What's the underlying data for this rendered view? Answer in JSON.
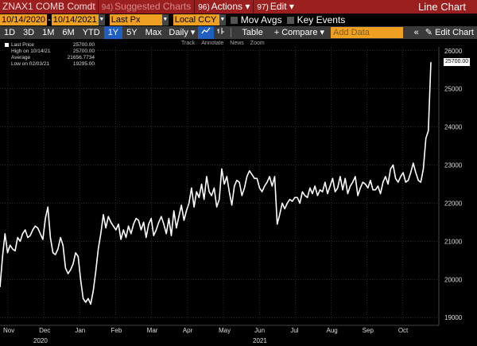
{
  "topbar": {
    "ticker": "ZNAX1 COMB Comdt",
    "suggested": {
      "num": "94)",
      "label": "Suggested Charts"
    },
    "actions": {
      "num": "96)",
      "label": "Actions ▾"
    },
    "edit": {
      "num": "97)",
      "label": "Edit ▾"
    },
    "title": "Line Chart"
  },
  "row2": {
    "start_date": "10/14/2020",
    "end_date": "10/14/2021",
    "field": "Last Px",
    "currency": "Local CCY",
    "mov_avgs": "Mov Avgs",
    "key_events": "Key Events"
  },
  "toolbar": {
    "ranges": [
      "1D",
      "3D",
      "1M",
      "6M",
      "YTD",
      "1Y",
      "5Y",
      "Max"
    ],
    "active_range": "1Y",
    "period": "Daily ▾",
    "table": "Table",
    "compare": "+ Compare ▾",
    "add_data_placeholder": "Add Data",
    "edit_chart": "Edit Chart",
    "collapse": "«"
  },
  "legend": {
    "last_price_label": "Last Price",
    "last_price_value": "25700.00",
    "high_label": "High on 10/14/21",
    "high_value": "25700.00",
    "avg_label": "Average",
    "avg_value": "21656.7734",
    "low_label": "Low on 02/03/21",
    "low_value": "19295.00"
  },
  "mini_tools": [
    "Track",
    "Annotate",
    "News",
    "Zoom"
  ],
  "last_tag": "25700.00",
  "chart_data": {
    "type": "line",
    "series": [
      {
        "name": "Last Price",
        "values": [
          19800,
          20600,
          21200,
          20700,
          20900,
          20800,
          20750,
          21100,
          21000,
          21200,
          21300,
          21100,
          21150,
          21300,
          21400,
          21350,
          21200,
          21050,
          21600,
          21900,
          21100,
          20700,
          20650,
          20800,
          21100,
          20900,
          20300,
          20150,
          20250,
          20400,
          20700,
          20600,
          20000,
          19500,
          19400,
          19500,
          19350,
          19700,
          20200,
          20800,
          21200,
          21700,
          21350,
          21650,
          21500,
          21400,
          21300,
          21450,
          21050,
          21300,
          21100,
          21400,
          21200,
          21450,
          21600,
          21550,
          21300,
          21500,
          21100,
          21450,
          21600,
          21150,
          21300,
          21500,
          21650,
          21450,
          21200,
          21600,
          21150,
          21800,
          21350,
          21650,
          21950,
          21550,
          21800,
          22000,
          22400,
          21900,
          22300,
          22150,
          22500,
          22100,
          22700,
          22300,
          22200,
          22400,
          21900,
          22100,
          22900,
          22500,
          22700,
          22300,
          21950,
          22450,
          22600,
          22550,
          22200,
          22400,
          22700,
          22850,
          22750,
          22650,
          22650,
          22400,
          22300,
          22450,
          22550,
          22700,
          22450,
          22700,
          21450,
          21700,
          22000,
          21850,
          22000,
          22100,
          22050,
          22150,
          22150,
          22000,
          22300,
          22200,
          22150,
          22400,
          22250,
          22450,
          22200,
          22350,
          22300,
          22550,
          22250,
          22450,
          22650,
          22300,
          22400,
          22700,
          22350,
          22650,
          22250,
          22450,
          22550,
          22700,
          22200,
          22400,
          22550,
          22500,
          22400,
          22600,
          22350,
          22350,
          22450,
          22250,
          22550,
          22700,
          22500,
          22900,
          23000,
          22650,
          22550,
          22700,
          22800,
          22550,
          22600,
          22800,
          23050,
          22800,
          22600,
          22550,
          22900,
          23700,
          23900,
          25700
        ]
      }
    ],
    "x_tick_labels": [
      "Nov",
      "Dec",
      "Jan",
      "Feb",
      "Mar",
      "Apr",
      "May",
      "Jun",
      "Jul",
      "Aug",
      "Sep",
      "Oct"
    ],
    "x_year_labels": [
      "2020",
      "2021"
    ],
    "y_tick_labels": [
      "19000",
      "20000",
      "21000",
      "22000",
      "23000",
      "24000",
      "25000",
      "26000"
    ],
    "ylim": [
      18900,
      26100
    ],
    "grid": true,
    "legend_position": "top-left",
    "line_color": "#ffffff",
    "grid_color": "#555555"
  }
}
